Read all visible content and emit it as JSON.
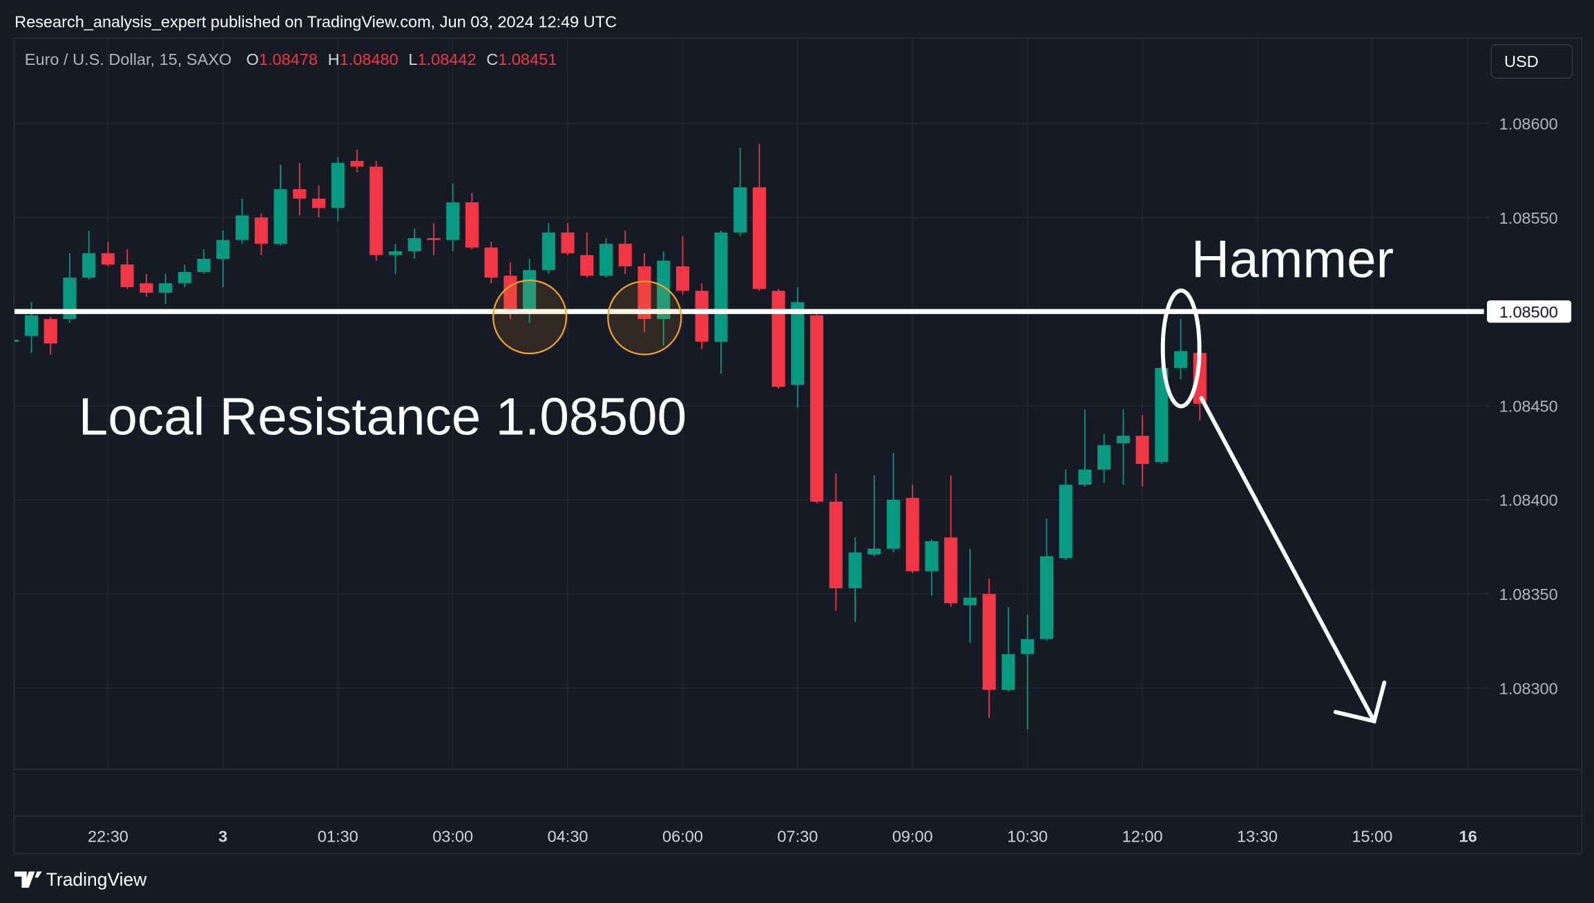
{
  "header": {
    "publisher": "Research_analysis_expert published on TradingView.com, Jun 03, 2024 12:49 UTC"
  },
  "footer": {
    "brand": "TradingView"
  },
  "toolbar": {
    "currency": "USD"
  },
  "chart_data": {
    "type": "candlestick",
    "symbol": "Euro / U.S. Dollar, 15, SAXO",
    "ohlc_legend": [
      {
        "key": "O",
        "value": "1.08478"
      },
      {
        "key": "H",
        "value": "1.08480"
      },
      {
        "key": "L",
        "value": "1.08442"
      },
      {
        "key": "C",
        "value": "1.08451"
      }
    ],
    "up_color": "#089981",
    "down_color": "#f23645",
    "grid": true,
    "categories": [
      null,
      null,
      null,
      null,
      null,
      "22:30",
      null,
      null,
      null,
      null,
      null,
      "3",
      null,
      null,
      null,
      null,
      null,
      "01:30",
      null,
      null,
      null,
      null,
      null,
      "03:00",
      null,
      null,
      null,
      null,
      null,
      "04:30",
      null,
      null,
      null,
      null,
      null,
      "06:00",
      null,
      null,
      null,
      null,
      null,
      "07:30",
      null,
      null,
      null,
      null,
      null,
      "09:00",
      null,
      null,
      null,
      null,
      null,
      "10:30",
      null,
      null,
      null,
      null,
      null,
      "12:00",
      null,
      null,
      null,
      null,
      null,
      "13:30",
      null,
      null,
      null,
      null,
      null,
      "15:00",
      null,
      null,
      null,
      null,
      "16"
    ],
    "open": [
      1.08484,
      1.08487,
      1.08496,
      1.08496,
      1.08518,
      1.08531,
      1.08525,
      1.08515,
      1.0851,
      1.08515,
      1.08521,
      1.08528,
      1.08538,
      1.0855,
      1.08536,
      1.08565,
      1.0856,
      1.08555,
      1.0858,
      1.08577,
      1.0853,
      1.08532,
      1.08539,
      1.08538,
      1.08558,
      1.08534,
      1.08519,
      1.08501,
      1.08522,
      1.08542,
      1.0853,
      1.08519,
      1.08536,
      1.08524,
      1.08496,
      1.08524,
      1.08511,
      1.08484,
      1.08542,
      1.08566,
      1.08511,
      1.08461,
      1.08498,
      1.08399,
      1.08353,
      1.08371,
      1.08374,
      1.08401,
      1.08362,
      1.0838,
      1.08344,
      1.0835,
      1.08299,
      1.08318,
      1.08326,
      1.08369,
      1.08408,
      1.08416,
      1.0843,
      1.08434,
      1.0842,
      1.0847,
      1.08478,
      null,
      null,
      null,
      null,
      null,
      null,
      null,
      null,
      null,
      null,
      null,
      null,
      null,
      null
    ],
    "high": [
      1.08486,
      1.08505,
      1.08497,
      1.08531,
      1.08543,
      1.08537,
      1.08533,
      1.0852,
      1.0852,
      1.08525,
      1.08533,
      1.08543,
      1.0856,
      1.08552,
      1.08578,
      1.08579,
      1.08567,
      1.08582,
      1.08586,
      1.0858,
      1.08536,
      1.08544,
      1.08547,
      1.08568,
      1.08563,
      1.08537,
      1.08526,
      1.08528,
      1.08547,
      1.08547,
      1.08542,
      1.08539,
      1.08543,
      1.08531,
      1.08532,
      1.0854,
      1.08515,
      1.08543,
      1.08587,
      1.08589,
      1.08512,
      1.08513,
      1.08501,
      1.08414,
      1.0838,
      1.08413,
      1.08425,
      1.08408,
      1.08379,
      1.08413,
      1.08374,
      1.08358,
      1.08343,
      1.08339,
      1.0839,
      1.08416,
      1.08448,
      1.08435,
      1.08448,
      1.08445,
      1.08471,
      1.08496,
      1.0848,
      null,
      null,
      null,
      null,
      null,
      null,
      null,
      null,
      null,
      null,
      null,
      null,
      null,
      null
    ],
    "low": [
      1.08483,
      1.08478,
      1.08477,
      1.08494,
      1.08517,
      1.08524,
      1.08512,
      1.08508,
      1.08504,
      1.08513,
      1.0852,
      1.08513,
      1.08536,
      1.0853,
      1.08535,
      1.08551,
      1.0855,
      1.08548,
      1.08574,
      1.08527,
      1.0852,
      1.08528,
      1.0853,
      1.08532,
      1.08533,
      1.08515,
      1.08496,
      1.08494,
      1.0852,
      1.0853,
      1.08518,
      1.08518,
      1.0852,
      1.08489,
      1.08482,
      1.08509,
      1.0848,
      1.08467,
      1.0854,
      1.08511,
      1.08459,
      1.08449,
      1.08398,
      1.08341,
      1.08335,
      1.0837,
      1.08372,
      1.08361,
      1.08349,
      1.08343,
      1.08324,
      1.08284,
      1.08298,
      1.08278,
      1.08325,
      1.08368,
      1.08407,
      1.08409,
      1.08408,
      1.08407,
      1.08419,
      1.08464,
      1.08442,
      null,
      null,
      null,
      null,
      null,
      null,
      null,
      null,
      null,
      null,
      null,
      null,
      null,
      null
    ],
    "close": [
      1.08485,
      1.08498,
      1.08483,
      1.08518,
      1.08531,
      1.08525,
      1.08513,
      1.0851,
      1.08515,
      1.08521,
      1.08528,
      1.08538,
      1.08551,
      1.08536,
      1.08565,
      1.0856,
      1.08555,
      1.08579,
      1.08577,
      1.0853,
      1.08532,
      1.08539,
      1.08538,
      1.08558,
      1.08534,
      1.08518,
      1.08501,
      1.08522,
      1.08542,
      1.08531,
      1.08519,
      1.08536,
      1.08524,
      1.08496,
      1.08527,
      1.08511,
      1.08484,
      1.08542,
      1.08566,
      1.08512,
      1.0846,
      1.08505,
      1.08399,
      1.08353,
      1.08372,
      1.08374,
      1.084,
      1.08362,
      1.08378,
      1.08345,
      1.08348,
      1.08299,
      1.08318,
      1.08326,
      1.0837,
      1.08408,
      1.08416,
      1.08429,
      1.08434,
      1.08419,
      1.0847,
      1.08479,
      1.08451,
      null,
      null,
      null,
      null,
      null,
      null,
      null,
      null,
      null,
      null,
      null,
      null,
      null,
      null
    ],
    "ylim": [
      1.08257,
      1.08645
    ],
    "yticks": [
      {
        "value": 1.083,
        "label": "1.08300"
      },
      {
        "value": 1.0835,
        "label": "1.08350"
      },
      {
        "value": 1.084,
        "label": "1.08400"
      },
      {
        "value": 1.0845,
        "label": "1.08450"
      },
      {
        "value": 1.085,
        "label": "1.08500"
      },
      {
        "value": 1.0855,
        "label": "1.08550"
      },
      {
        "value": 1.086,
        "label": "1.08600"
      }
    ],
    "hline": {
      "value": 1.085,
      "label": "1.08500"
    },
    "annotations": [
      "Local Resistance 1.08500",
      "Hammer"
    ]
  }
}
